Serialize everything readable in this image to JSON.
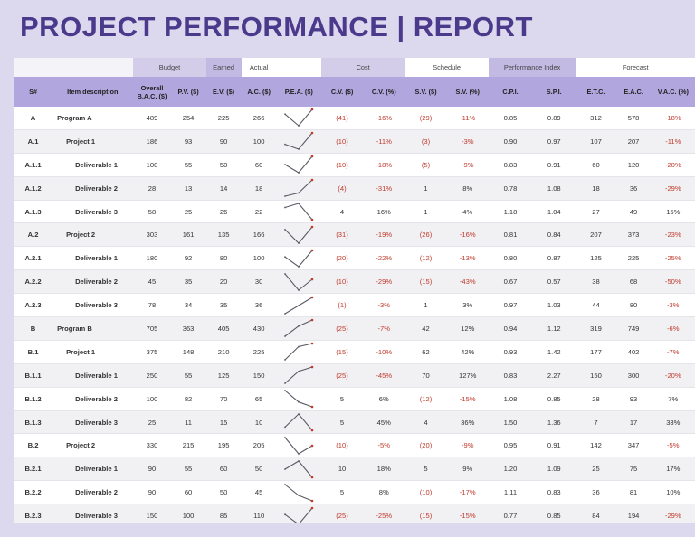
{
  "title": "PROJECT PERFORMANCE  |  REPORT",
  "groups": {
    "budget": "Budget",
    "earned": "Earned",
    "actual": "Actual",
    "cost": "Cost",
    "schedule": "Schedule",
    "performance_index": "Performance Index",
    "forecast": "Forecast"
  },
  "headers": {
    "sn": "S#",
    "desc": "Item description",
    "bac": "Overall B.A.C. ($)",
    "pv": "P.V. ($)",
    "ev": "E.V. ($)",
    "ac": "A.C. ($)",
    "pea": "P.E.A. ($)",
    "cv": "C.V. ($)",
    "cvp": "C.V. (%)",
    "sv": "S.V. ($)",
    "svp": "S.V. (%)",
    "cpi": "C.P.I.",
    "spi": "S.P.I.",
    "etc": "E.T.C.",
    "eac": "E.A.C.",
    "vac": "V.A.C. (%)"
  },
  "colors": {
    "negative": "#c0392b",
    "sparkline": "#5a5a66",
    "sparkline_end": "#c0392b"
  },
  "rows": [
    {
      "id": "A",
      "desc": "Program A",
      "level": 0,
      "bac": "489",
      "pv": "254",
      "ev": "225",
      "ac": "266",
      "cv": "(41)",
      "cvp": "-16%",
      "sv": "(29)",
      "svp": "-11%",
      "cpi": "0.85",
      "spi": "0.89",
      "etc": "312",
      "eac": "578",
      "vac": "-18%"
    },
    {
      "id": "A.1",
      "desc": "Project 1",
      "level": 1,
      "bac": "186",
      "pv": "93",
      "ev": "90",
      "ac": "100",
      "cv": "(10)",
      "cvp": "-11%",
      "sv": "(3)",
      "svp": "-3%",
      "cpi": "0.90",
      "spi": "0.97",
      "etc": "107",
      "eac": "207",
      "vac": "-11%"
    },
    {
      "id": "A.1.1",
      "desc": "Deliverable 1",
      "level": 2,
      "bac": "100",
      "pv": "55",
      "ev": "50",
      "ac": "60",
      "cv": "(10)",
      "cvp": "-18%",
      "sv": "(5)",
      "svp": "-9%",
      "cpi": "0.83",
      "spi": "0.91",
      "etc": "60",
      "eac": "120",
      "vac": "-20%"
    },
    {
      "id": "A.1.2",
      "desc": "Deliverable 2",
      "level": 2,
      "bac": "28",
      "pv": "13",
      "ev": "14",
      "ac": "18",
      "cv": "(4)",
      "cvp": "-31%",
      "sv": "1",
      "svp": "8%",
      "cpi": "0.78",
      "spi": "1.08",
      "etc": "18",
      "eac": "36",
      "vac": "-29%"
    },
    {
      "id": "A.1.3",
      "desc": "Deliverable 3",
      "level": 2,
      "bac": "58",
      "pv": "25",
      "ev": "26",
      "ac": "22",
      "cv": "4",
      "cvp": "16%",
      "sv": "1",
      "svp": "4%",
      "cpi": "1.18",
      "spi": "1.04",
      "etc": "27",
      "eac": "49",
      "vac": "15%"
    },
    {
      "id": "A.2",
      "desc": "Project 2",
      "level": 1,
      "bac": "303",
      "pv": "161",
      "ev": "135",
      "ac": "166",
      "cv": "(31)",
      "cvp": "-19%",
      "sv": "(26)",
      "svp": "-16%",
      "cpi": "0.81",
      "spi": "0.84",
      "etc": "207",
      "eac": "373",
      "vac": "-23%"
    },
    {
      "id": "A.2.1",
      "desc": "Deliverable 1",
      "level": 2,
      "bac": "180",
      "pv": "92",
      "ev": "80",
      "ac": "100",
      "cv": "(20)",
      "cvp": "-22%",
      "sv": "(12)",
      "svp": "-13%",
      "cpi": "0.80",
      "spi": "0.87",
      "etc": "125",
      "eac": "225",
      "vac": "-25%"
    },
    {
      "id": "A.2.2",
      "desc": "Deliverable 2",
      "level": 2,
      "bac": "45",
      "pv": "35",
      "ev": "20",
      "ac": "30",
      "cv": "(10)",
      "cvp": "-29%",
      "sv": "(15)",
      "svp": "-43%",
      "cpi": "0.67",
      "spi": "0.57",
      "etc": "38",
      "eac": "68",
      "vac": "-50%"
    },
    {
      "id": "A.2.3",
      "desc": "Deliverable 3",
      "level": 2,
      "bac": "78",
      "pv": "34",
      "ev": "35",
      "ac": "36",
      "cv": "(1)",
      "cvp": "-3%",
      "sv": "1",
      "svp": "3%",
      "cpi": "0.97",
      "spi": "1.03",
      "etc": "44",
      "eac": "80",
      "vac": "-3%"
    },
    {
      "id": "B",
      "desc": "Program B",
      "level": 0,
      "bac": "705",
      "pv": "363",
      "ev": "405",
      "ac": "430",
      "cv": "(25)",
      "cvp": "-7%",
      "sv": "42",
      "svp": "12%",
      "cpi": "0.94",
      "spi": "1.12",
      "etc": "319",
      "eac": "749",
      "vac": "-6%"
    },
    {
      "id": "B.1",
      "desc": "Project 1",
      "level": 1,
      "bac": "375",
      "pv": "148",
      "ev": "210",
      "ac": "225",
      "cv": "(15)",
      "cvp": "-10%",
      "sv": "62",
      "svp": "42%",
      "cpi": "0.93",
      "spi": "1.42",
      "etc": "177",
      "eac": "402",
      "vac": "-7%"
    },
    {
      "id": "B.1.1",
      "desc": "Deliverable 1",
      "level": 2,
      "bac": "250",
      "pv": "55",
      "ev": "125",
      "ac": "150",
      "cv": "(25)",
      "cvp": "-45%",
      "sv": "70",
      "svp": "127%",
      "cpi": "0.83",
      "spi": "2.27",
      "etc": "150",
      "eac": "300",
      "vac": "-20%"
    },
    {
      "id": "B.1.2",
      "desc": "Deliverable 2",
      "level": 2,
      "bac": "100",
      "pv": "82",
      "ev": "70",
      "ac": "65",
      "cv": "5",
      "cvp": "6%",
      "sv": "(12)",
      "svp": "-15%",
      "cpi": "1.08",
      "spi": "0.85",
      "etc": "28",
      "eac": "93",
      "vac": "7%"
    },
    {
      "id": "B.1.3",
      "desc": "Deliverable 3",
      "level": 2,
      "bac": "25",
      "pv": "11",
      "ev": "15",
      "ac": "10",
      "cv": "5",
      "cvp": "45%",
      "sv": "4",
      "svp": "36%",
      "cpi": "1.50",
      "spi": "1.36",
      "etc": "7",
      "eac": "17",
      "vac": "33%"
    },
    {
      "id": "B.2",
      "desc": "Project 2",
      "level": 1,
      "bac": "330",
      "pv": "215",
      "ev": "195",
      "ac": "205",
      "cv": "(10)",
      "cvp": "-5%",
      "sv": "(20)",
      "svp": "-9%",
      "cpi": "0.95",
      "spi": "0.91",
      "etc": "142",
      "eac": "347",
      "vac": "-5%"
    },
    {
      "id": "B.2.1",
      "desc": "Deliverable 1",
      "level": 2,
      "bac": "90",
      "pv": "55",
      "ev": "60",
      "ac": "50",
      "cv": "10",
      "cvp": "18%",
      "sv": "5",
      "svp": "9%",
      "cpi": "1.20",
      "spi": "1.09",
      "etc": "25",
      "eac": "75",
      "vac": "17%"
    },
    {
      "id": "B.2.2",
      "desc": "Deliverable 2",
      "level": 2,
      "bac": "90",
      "pv": "60",
      "ev": "50",
      "ac": "45",
      "cv": "5",
      "cvp": "8%",
      "sv": "(10)",
      "svp": "-17%",
      "cpi": "1.11",
      "spi": "0.83",
      "etc": "36",
      "eac": "81",
      "vac": "10%"
    },
    {
      "id": "B.2.3",
      "desc": "Deliverable 3",
      "level": 2,
      "bac": "150",
      "pv": "100",
      "ev": "85",
      "ac": "110",
      "cv": "(25)",
      "cvp": "-25%",
      "sv": "(15)",
      "svp": "-15%",
      "cpi": "0.77",
      "spi": "0.85",
      "etc": "84",
      "eac": "194",
      "vac": "-29%"
    }
  ]
}
